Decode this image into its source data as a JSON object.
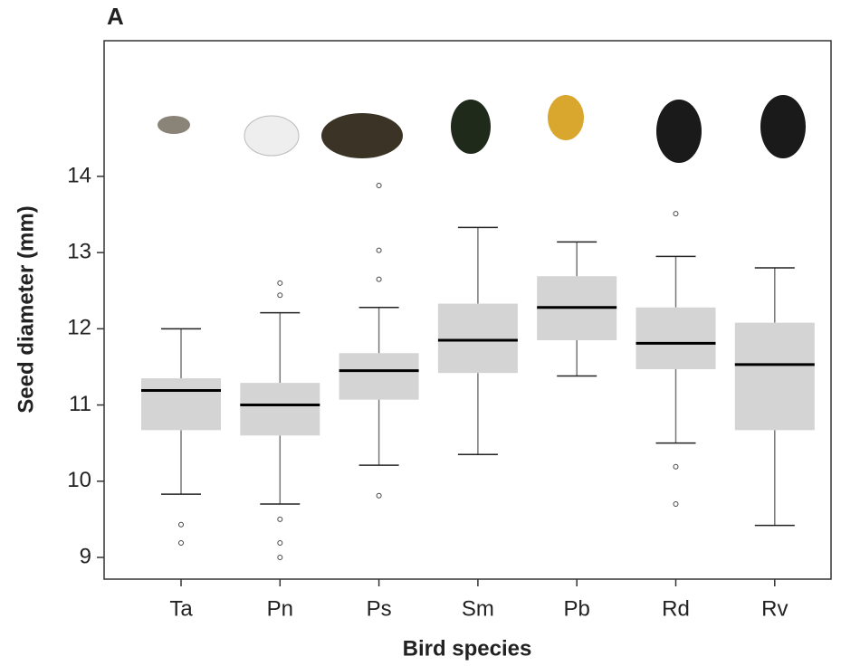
{
  "chart_data": {
    "type": "box",
    "panel_label": "A",
    "x_label": "Bird species",
    "y_label": "Seed diameter (mm)",
    "categories": [
      "Ta",
      "Pn",
      "Ps",
      "Sm",
      "Pb",
      "Rd",
      "Rv"
    ],
    "boxes": [
      {
        "low": 9.83,
        "q1": 10.67,
        "median": 11.19,
        "q3": 11.35,
        "high": 12.0,
        "outliers": [
          9.43,
          9.19
        ]
      },
      {
        "low": 9.7,
        "q1": 10.6,
        "median": 11.0,
        "q3": 11.29,
        "high": 12.21,
        "outliers": [
          12.6,
          12.44,
          9.5,
          9.19,
          9.0
        ]
      },
      {
        "low": 10.21,
        "q1": 11.07,
        "median": 11.45,
        "q3": 11.68,
        "high": 12.28,
        "outliers": [
          13.88,
          13.03,
          12.65,
          9.81
        ]
      },
      {
        "low": 10.35,
        "q1": 11.42,
        "median": 11.85,
        "q3": 12.33,
        "high": 13.33,
        "outliers": []
      },
      {
        "low": 11.38,
        "q1": 11.85,
        "median": 12.28,
        "q3": 12.69,
        "high": 13.14,
        "outliers": []
      },
      {
        "low": 10.5,
        "q1": 11.47,
        "median": 11.81,
        "q3": 12.28,
        "high": 12.95,
        "outliers": [
          13.51,
          10.19,
          9.7
        ]
      },
      {
        "low": 9.42,
        "q1": 10.67,
        "median": 11.53,
        "q3": 12.08,
        "high": 12.8,
        "outliers": []
      }
    ],
    "color": "#d4d4d4",
    "ylim": [
      8.715,
      15.78
    ],
    "yticks": [
      9,
      10,
      11,
      12,
      13,
      14
    ]
  }
}
